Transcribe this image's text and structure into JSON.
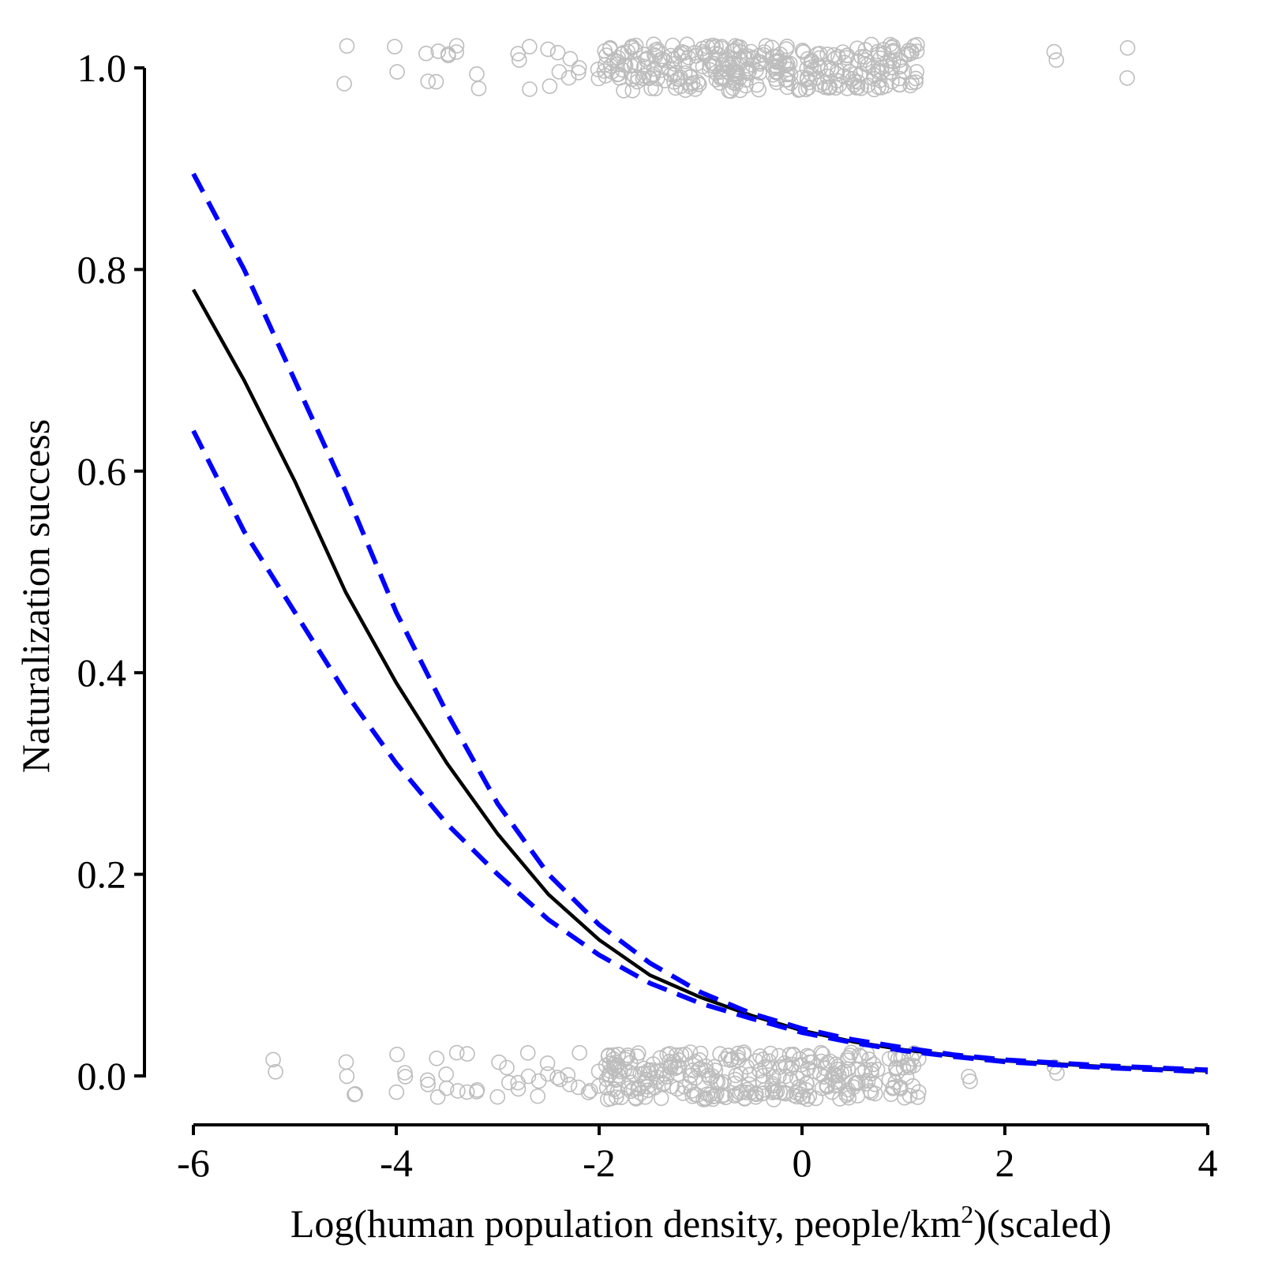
{
  "chart_data": {
    "type": "line",
    "title": "",
    "xlabel": "Log(human population density, people/km",
    "xlabel_superscript": "2",
    "xlabel_suffix": ")(scaled)",
    "ylabel": "Naturalization success",
    "xlim": [
      -6,
      4
    ],
    "ylim": [
      0,
      1
    ],
    "x_ticks": [
      -6,
      -4,
      -2,
      0,
      2,
      4
    ],
    "x_tick_labels": [
      "-6",
      "-4",
      "-2",
      "0",
      "2",
      "4"
    ],
    "y_ticks": [
      0,
      0.2,
      0.4,
      0.6,
      0.8,
      1.0
    ],
    "y_tick_labels": [
      "0.0",
      "0.2",
      "0.4",
      "0.6",
      "0.8",
      "1.0"
    ],
    "grid": false,
    "legend": "none",
    "colors": {
      "fit": "#000000",
      "confidence_interval": "#0000ff",
      "observations": "#bdbdbd"
    },
    "series": [
      {
        "style": "solid",
        "x": [
          -6,
          -5.5,
          -5,
          -4.5,
          -4,
          -3.5,
          -3,
          -2.5,
          -2,
          -1.5,
          -1,
          -0.5,
          0,
          0.5,
          1,
          1.5,
          2,
          2.5,
          3,
          3.5,
          4
        ],
        "values": [
          0.78,
          0.69,
          0.59,
          0.48,
          0.39,
          0.31,
          0.24,
          0.18,
          0.135,
          0.1,
          0.078,
          0.06,
          0.045,
          0.034,
          0.026,
          0.02,
          0.015,
          0.012,
          0.009,
          0.007,
          0.005
        ]
      },
      {
        "style": "dashed",
        "x": [
          -6,
          -5.5,
          -5,
          -4.5,
          -4,
          -3.5,
          -3,
          -2.5,
          -2,
          -1.5,
          -1,
          -0.5,
          0,
          0.5,
          1,
          1.5,
          2,
          2.5,
          3,
          3.5,
          4
        ],
        "values": [
          0.895,
          0.8,
          0.69,
          0.58,
          0.46,
          0.36,
          0.27,
          0.2,
          0.15,
          0.112,
          0.083,
          0.062,
          0.047,
          0.036,
          0.028,
          0.021,
          0.016,
          0.013,
          0.01,
          0.008,
          0.006
        ]
      },
      {
        "style": "dashed",
        "x": [
          -6,
          -5.5,
          -5,
          -4.5,
          -4,
          -3.5,
          -3,
          -2.5,
          -2,
          -1.5,
          -1,
          -0.5,
          0,
          0.5,
          1,
          1.5,
          2,
          2.5,
          3,
          3.5,
          4
        ],
        "values": [
          0.64,
          0.54,
          0.46,
          0.38,
          0.31,
          0.25,
          0.2,
          0.155,
          0.12,
          0.092,
          0.072,
          0.057,
          0.043,
          0.033,
          0.025,
          0.019,
          0.014,
          0.011,
          0.008,
          0.006,
          0.004
        ]
      }
    ],
    "observations": {
      "success_value": 1,
      "failure_value": 0,
      "success_x": [
        -4.5,
        -4.0,
        -3.7,
        -3.6,
        -3.4,
        -3.5,
        -3.2,
        -2.8,
        -2.7,
        -2.5,
        -2.4,
        -2.3,
        -2.2,
        -2.0,
        -1.9,
        -1.8,
        -1.7,
        -1.6,
        -1.5,
        -1.4,
        -1.3,
        -1.2,
        -1.1,
        -1.0,
        -0.9,
        -0.8,
        -0.75,
        -0.7,
        -0.65,
        -0.6,
        -0.5,
        -0.4,
        -0.3,
        -0.2,
        -0.1,
        0.0,
        0.1,
        0.2,
        0.3,
        0.4,
        0.5,
        0.6,
        0.7,
        0.8,
        0.9,
        1.0,
        1.1,
        2.5,
        3.2
      ],
      "failure_x": [
        -5.2,
        -4.5,
        -4.4,
        -4.0,
        -3.9,
        -3.7,
        -3.6,
        -3.5,
        -3.4,
        -3.3,
        -3.2,
        -3.0,
        -2.9,
        -2.8,
        -2.7,
        -2.6,
        -2.5,
        -2.4,
        -2.3,
        -2.2,
        -2.1,
        -2.0,
        -1.9,
        -1.85,
        -1.8,
        -1.7,
        -1.6,
        -1.5,
        -1.4,
        -1.3,
        -1.2,
        -1.1,
        -1.0,
        -0.9,
        -0.8,
        -0.7,
        -0.6,
        -0.5,
        -0.4,
        -0.3,
        -0.2,
        -0.1,
        0.0,
        0.1,
        0.2,
        0.3,
        0.4,
        0.5,
        0.6,
        0.7,
        0.9,
        1.0,
        1.1,
        1.65,
        2.5
      ]
    }
  }
}
